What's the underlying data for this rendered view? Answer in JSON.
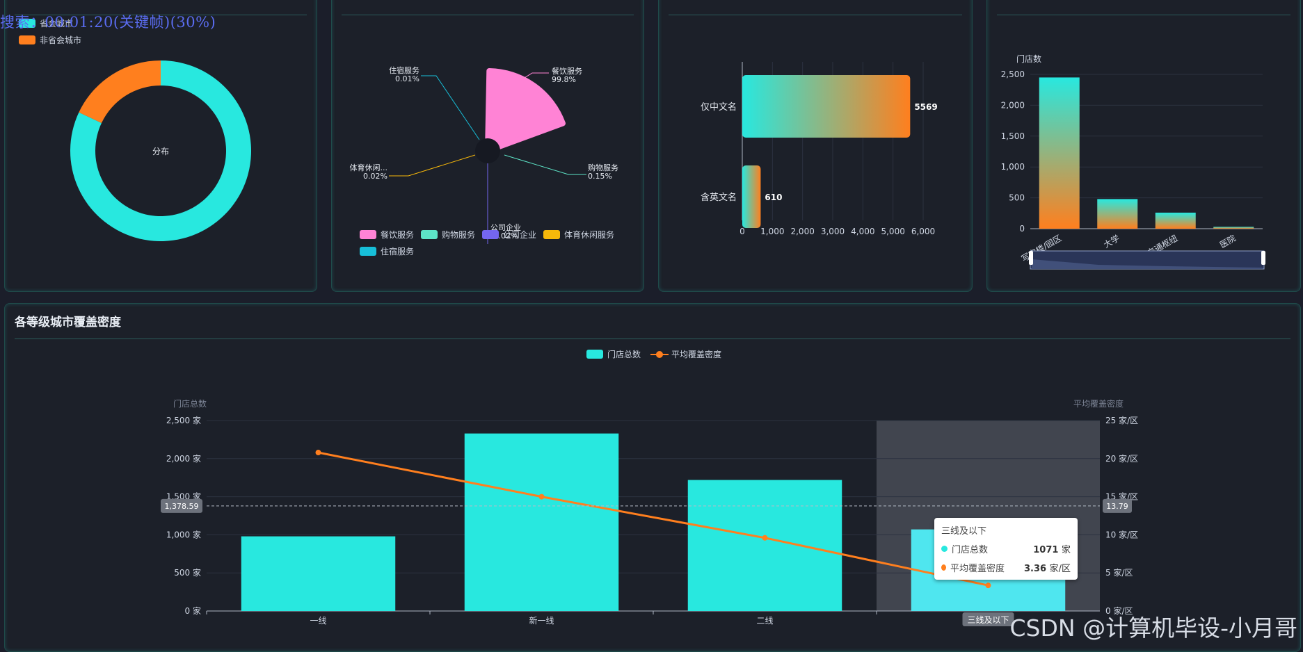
{
  "overlay_text": "搜索：00:01:20(关键帧)(30%)",
  "watermark": "CSDN @计算机毕设-小月哥",
  "colors": {
    "cyan": "#28e8df",
    "orange": "#ff7f1e",
    "pink": "#ff83d5",
    "teal": "#5de4c7",
    "purple": "#7466f0",
    "yellow": "#f7b80a",
    "sky": "#17bfd9"
  },
  "chart_data": [
    {
      "id": "donut",
      "type": "pie",
      "legend": [
        "省会城市",
        "非省会城市"
      ],
      "center_label": "分布",
      "values": [
        82,
        18
      ]
    },
    {
      "id": "rose",
      "type": "pie",
      "slices": [
        {
          "name": "餐饮服务",
          "pct": "99.8%",
          "value": 99.8
        },
        {
          "name": "购物服务",
          "pct": "0.15%",
          "value": 0.15
        },
        {
          "name": "公司企业",
          "pct": "0.02%",
          "value": 0.02
        },
        {
          "name": "体育休闲...",
          "pct": "0.02%",
          "value": 0.02
        },
        {
          "name": "住宿服务",
          "pct": "0.01%",
          "value": 0.01
        }
      ],
      "legend": [
        "餐饮服务",
        "购物服务",
        "公司企业",
        "体育休闲服务",
        "住宿服务"
      ]
    },
    {
      "id": "hbar",
      "type": "bar",
      "categories": [
        "仅中文名",
        "含英文名"
      ],
      "values": [
        5569,
        610
      ],
      "xticks": [
        "0",
        "1,000",
        "2,000",
        "3,000",
        "4,000",
        "5,000",
        "6,000"
      ],
      "xlim": [
        0,
        6000
      ]
    },
    {
      "id": "vbar",
      "type": "bar",
      "ylabel": "门店数",
      "categories": [
        "写字楼/园区",
        "大学",
        "交通枢纽",
        "医院"
      ],
      "values": [
        2450,
        480,
        260,
        30
      ],
      "yticks": [
        "0",
        "500",
        "1,000",
        "1,500",
        "2,000",
        "2,500"
      ],
      "ylim": [
        0,
        2500
      ]
    },
    {
      "id": "combo",
      "type": "bar",
      "title": "各等级城市覆盖密度",
      "legend": [
        "门店总数",
        "平均覆盖密度"
      ],
      "ylabel_left": "门店总数",
      "ylabel_right": "平均覆盖密度",
      "categories": [
        "一线",
        "新一线",
        "二线",
        "三线及以下"
      ],
      "series": [
        {
          "name": "门店总数",
          "type": "bar",
          "values": [
            980,
            2330,
            1720,
            1071
          ]
        },
        {
          "name": "平均覆盖密度",
          "type": "line",
          "values": [
            20.8,
            15.0,
            9.6,
            3.36
          ]
        }
      ],
      "yticks_left": [
        "0 家",
        "500 家",
        "1,000 家",
        "1,500 家",
        "2,000 家",
        "2,500 家"
      ],
      "yticks_right": [
        "0 家/区",
        "5 家/区",
        "10 家/区",
        "15 家/区",
        "20 家/区",
        "25 家/区"
      ],
      "ylim_left": [
        0,
        2500
      ],
      "ylim_right": [
        0,
        25
      ],
      "crosshair_left": "1,378.59",
      "crosshair_right": "13.79",
      "crosshair_value": 1378.59,
      "highlight_category": "三线及以下",
      "tooltip": {
        "title": "三线及以下",
        "rows": [
          {
            "name": "门店总数",
            "value": "1071",
            "unit": "家"
          },
          {
            "name": "平均覆盖密度",
            "value": "3.36",
            "unit": "家/区"
          }
        ]
      }
    }
  ]
}
